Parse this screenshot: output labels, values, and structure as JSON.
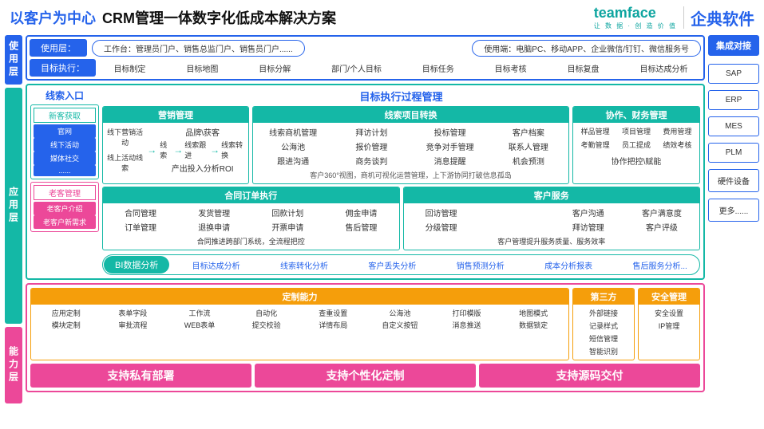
{
  "header": {
    "blue": "以客户为中心",
    "black": "CRM管理一体数字化低成本解决方案",
    "brand1": "teamface",
    "brand1sub": "让 数 据 · 创 造 价 值",
    "brand2": "企典软件"
  },
  "vtabs": {
    "usage": "使用层",
    "app": "应用层",
    "cap": "能力层"
  },
  "usage": {
    "r1label": "使用层：",
    "pill1": "工作台：管理员门户、销售总监门户、销售员门户......",
    "pill2": "使用端：电脑PC、移动APP、企业微信/钉钉、微信服务号",
    "r2label": "目标执行：",
    "items": [
      "目标制定",
      "目标地图",
      "目标分解",
      "部门/个人目标",
      "目标任务",
      "目标考核",
      "目标复盘",
      "目标达成分析"
    ]
  },
  "entry": {
    "title": "线索入口",
    "box1h": "新客获取",
    "box1": [
      "官网",
      "线下活动",
      "媒体社交",
      "......"
    ],
    "box2h": "老客管理",
    "box2": [
      "老客户介绍",
      "老客户新需求"
    ]
  },
  "apptitle": "目标执行过程管理",
  "mkt": {
    "h": "营销管理",
    "left": [
      "线下营销活动",
      "线上活动线索"
    ],
    "top": "品牌\\获客",
    "flow": [
      "线索",
      "线索跟进",
      "线索转换"
    ],
    "bottom": "产出投入分析ROI"
  },
  "conv": {
    "h": "线索项目转换",
    "grid": [
      "线索商机管理",
      "拜访计划",
      "投标管理",
      "客户档案",
      "公海池",
      "报价管理",
      "竞争对手管理",
      "联系人管理",
      "跟进沟通",
      "商务谈判",
      "消息提醒",
      "机会预测"
    ],
    "foot": "客户360°视图，商机可视化运营管理，上下游协同打破信息孤岛"
  },
  "fin": {
    "h": "协作、财务管理",
    "grid": [
      "样品管理",
      "项目管理",
      "费用管理",
      "考勤管理",
      "员工提成",
      "绩效考核"
    ],
    "foot": "协作把控\\赋能"
  },
  "order": {
    "h": "合同订单执行",
    "grid": [
      "合同管理",
      "发货管理",
      "回款计划",
      "佣金申请",
      "订单管理",
      "退换申请",
      "开票申请",
      "售后管理"
    ],
    "foot": "合同推进跨部门系统，全流程把控"
  },
  "svc": {
    "h": "客户服务",
    "grid": [
      "回访管理",
      "",
      "客户沟通",
      "客户满意度",
      "分级管理",
      "",
      "拜访管理",
      "客户评级"
    ],
    "foot": "客户管理提升服务质量、服务效率"
  },
  "bi": {
    "h": "BI数据分析",
    "items": [
      "目标达成分析",
      "线索转化分析",
      "客户丢失分析",
      "销售预测分析",
      "成本分析报表",
      "售后服务分析..."
    ]
  },
  "cap": {
    "custh": "定制能力",
    "cust": [
      "应用定制",
      "表单字段",
      "工作流",
      "自动化",
      "查重设置",
      "公海池",
      "打印模版",
      "地图模式",
      "模块定制",
      "审批流程",
      "WEB表单",
      "提交校验",
      "详情布局",
      "自定义按钮",
      "消息推送",
      "数据锁定"
    ],
    "thirdh": "第三方",
    "third": [
      "外部链接",
      "记录样式",
      "短信管理",
      "智能识别"
    ],
    "sech": "安全管理",
    "sec": [
      "安全设置",
      "IP管理"
    ],
    "btns": [
      "支持私有部署",
      "支持个性化定制",
      "支持源码交付"
    ]
  },
  "integ": {
    "h": "集成对接",
    "items": [
      "SAP",
      "ERP",
      "MES",
      "PLM",
      "硬件设备",
      "更多......"
    ]
  }
}
